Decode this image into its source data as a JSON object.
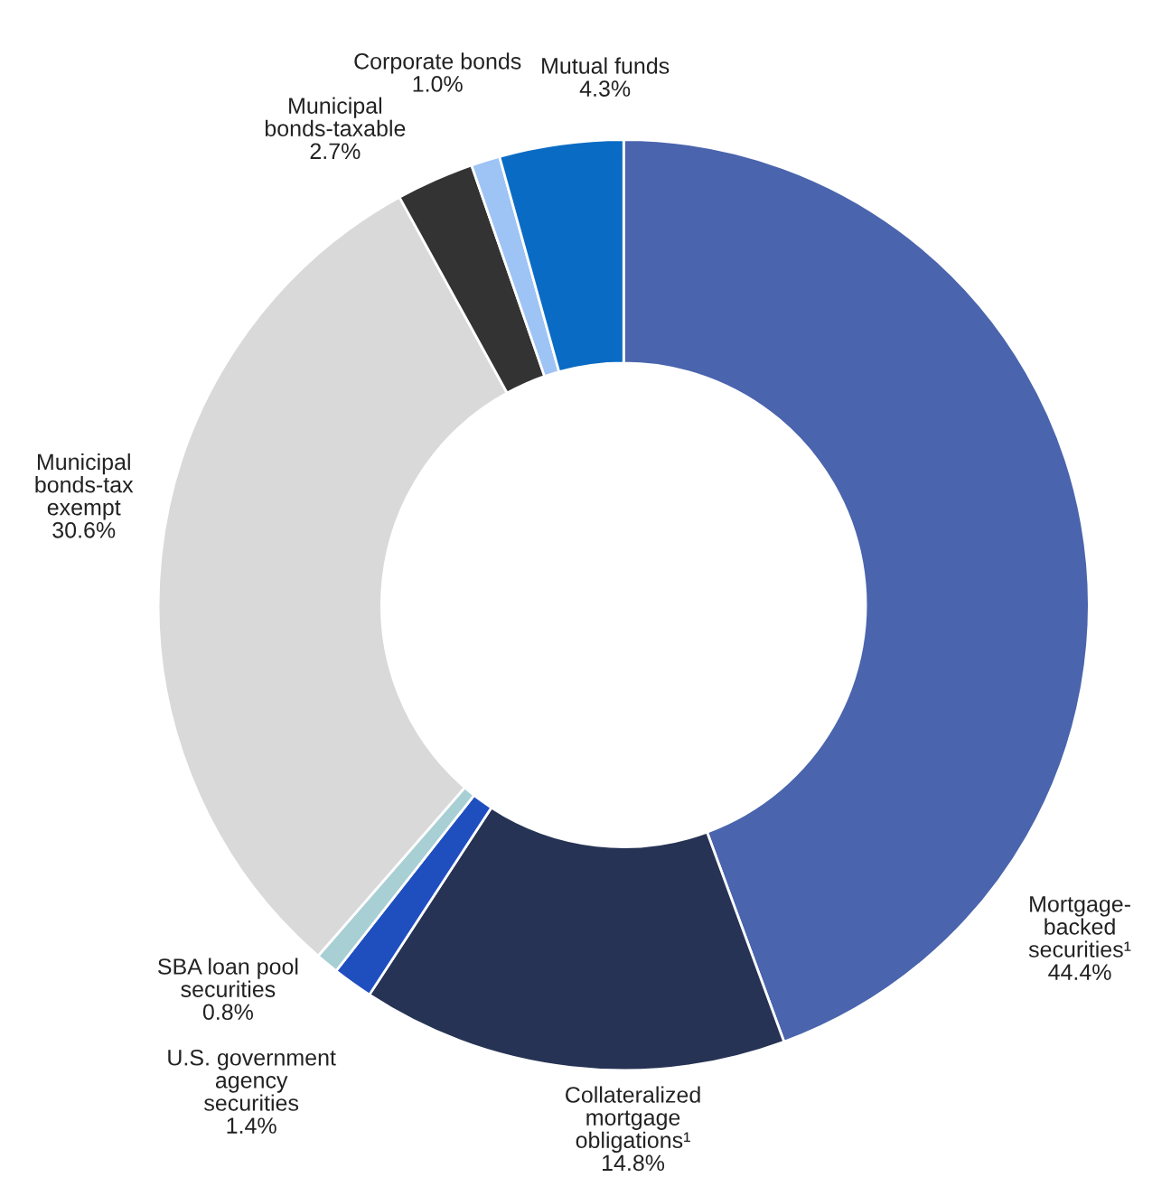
{
  "chart_data": {
    "type": "donut",
    "categories": [
      "Mortgage-\nbacked\nsecurities¹",
      "Collateralized\nmortgage\nobligations¹",
      "U.S. government\nagency\nsecurities",
      "SBA loan pool\nsecurities",
      "Municipal\nbonds-tax\nexempt",
      "Municipal\nbonds-taxable",
      "Corporate bonds",
      "Mutual funds"
    ],
    "values": [
      44.4,
      14.8,
      1.4,
      0.8,
      30.6,
      2.7,
      1.0,
      4.3
    ],
    "value_labels": [
      "44.4%",
      "14.8%",
      "1.4%",
      "0.8%",
      "30.6%",
      "2.7%",
      "1.0%",
      "4.3%"
    ],
    "colors": [
      "#4a64ad",
      "#263354",
      "#1f4fbf",
      "#a8cfd4",
      "#d9d9d9",
      "#333333",
      "#9ec3f5",
      "#0a6bc4"
    ],
    "legend": false
  }
}
